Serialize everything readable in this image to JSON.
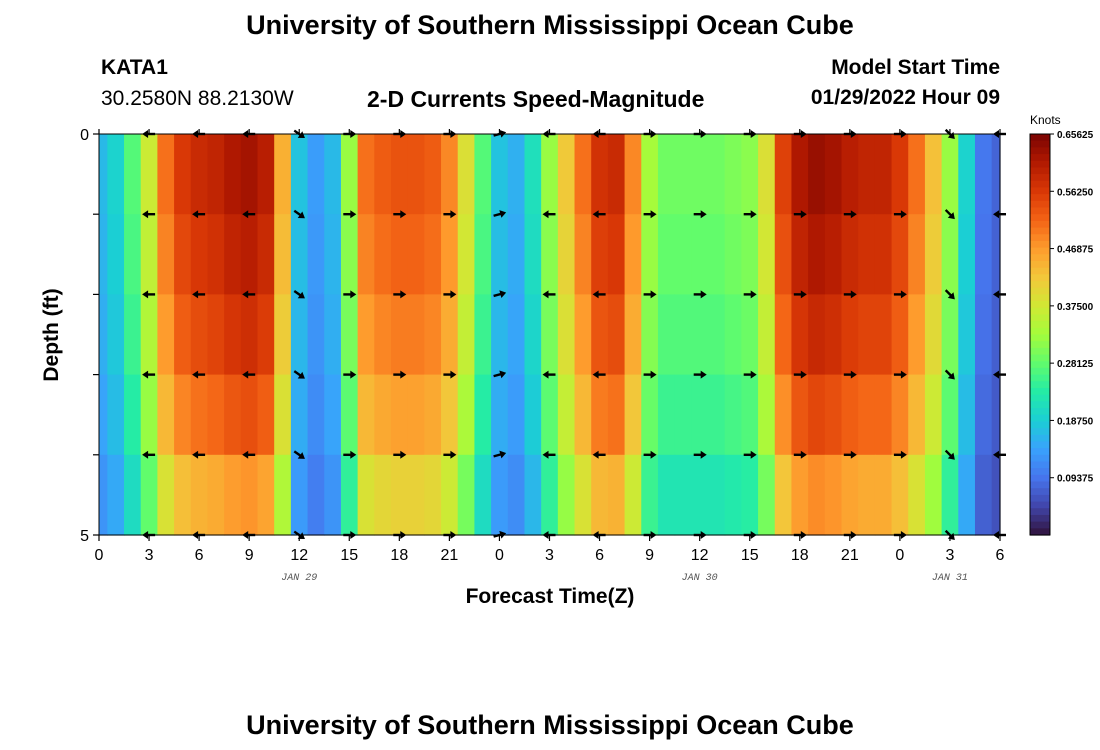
{
  "header": {
    "title": "University of Southern Mississippi Ocean Cube",
    "station": "KATA1",
    "coords": "30.2580N  88.2130W",
    "plot_title": "2-D Currents Speed-Magnitude",
    "model_label": "Model Start Time",
    "model_time": "01/29/2022 Hour 09"
  },
  "footer": {
    "title": "University of Southern Mississippi Ocean Cube"
  },
  "colors": {
    "scale": [
      "#30123b",
      "#4145ab",
      "#4675ed",
      "#39a2fc",
      "#1bcfd4",
      "#24eca6",
      "#61fc6c",
      "#a4fc3b",
      "#d1e834",
      "#f3c63a",
      "#fe9b2d",
      "#f36315",
      "#d93806",
      "#b11901",
      "#7a0402"
    ],
    "arrow": "#000000"
  },
  "chart_data": {
    "type": "heatmap",
    "xlabel": "Forecast Time(Z)",
    "ylabel": "Depth (ft)",
    "x_ticks": [
      "0",
      "3",
      "6",
      "9",
      "12",
      "15",
      "18",
      "21",
      "0",
      "3",
      "6",
      "9",
      "12",
      "15",
      "18",
      "21",
      "0",
      "3",
      "6"
    ],
    "date_labels": [
      {
        "label": "JAN 29",
        "hour": 12
      },
      {
        "label": "JAN 30",
        "hour": 36
      },
      {
        "label": "JAN 31",
        "hour": 51
      }
    ],
    "y_ticks": [
      "0",
      "5"
    ],
    "ylim": [
      0,
      5
    ],
    "xlim": [
      0,
      54
    ],
    "colorbar": {
      "title": "Knots",
      "min": 0,
      "max": 0.65625,
      "ticks": [
        "0.65625",
        "0.56250",
        "0.46875",
        "0.37500",
        "0.28125",
        "0.18750",
        "0.09375"
      ]
    },
    "hours": [
      0,
      1,
      2,
      3,
      4,
      5,
      6,
      7,
      8,
      9,
      10,
      11,
      12,
      13,
      14,
      15,
      16,
      17,
      18,
      19,
      20,
      21,
      22,
      23,
      24,
      25,
      26,
      27,
      28,
      29,
      30,
      31,
      32,
      33,
      34,
      35,
      36,
      37,
      38,
      39,
      40,
      41,
      42,
      43,
      44,
      45,
      46,
      47,
      48,
      49,
      50,
      51,
      52,
      53,
      54
    ],
    "depths": [
      0,
      1,
      2,
      3,
      4,
      5
    ],
    "surface_speed": [
      0.17,
      0.2,
      0.28,
      0.38,
      0.52,
      0.58,
      0.6,
      0.61,
      0.63,
      0.64,
      0.62,
      0.46,
      0.18,
      0.14,
      0.17,
      0.33,
      0.52,
      0.54,
      0.55,
      0.55,
      0.54,
      0.5,
      0.4,
      0.28,
      0.18,
      0.16,
      0.22,
      0.33,
      0.43,
      0.52,
      0.59,
      0.6,
      0.5,
      0.34,
      0.3,
      0.3,
      0.3,
      0.3,
      0.31,
      0.32,
      0.4,
      0.57,
      0.63,
      0.65,
      0.64,
      0.62,
      0.61,
      0.61,
      0.58,
      0.52,
      0.44,
      0.33,
      0.2,
      0.1,
      0.08
    ],
    "depth_factor": [
      1.0,
      0.97,
      0.94,
      0.9,
      0.84,
      0.74
    ],
    "arrow_hours": [
      3,
      6,
      9,
      12,
      15,
      18,
      21,
      24,
      27,
      30,
      33,
      36,
      39,
      42,
      45,
      48,
      51,
      54
    ],
    "arrow_depths": [
      0,
      1,
      2,
      3,
      4,
      5
    ],
    "arrow_dir_deg": [
      180,
      180,
      180,
      -35,
      0,
      0,
      0,
      15,
      180,
      180,
      0,
      0,
      0,
      0,
      0,
      0,
      -45,
      180
    ]
  }
}
